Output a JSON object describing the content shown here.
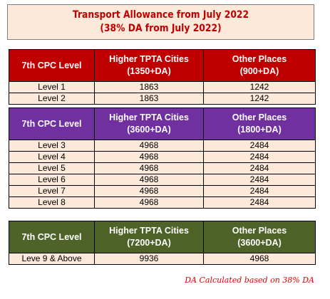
{
  "title": {
    "line1": "Transport Allowance from July 2022",
    "line2": "(38% DA from July 2022)"
  },
  "tables": [
    {
      "header": {
        "col1": "7th CPC Level",
        "col2_line1": "Higher TPTA Cities",
        "col2_line2": "(1350+DA)",
        "col3_line1": "Other Places",
        "col3_line2": "(900+DA)"
      },
      "header_color": "#c00000",
      "rows": [
        {
          "level": "Level 1",
          "higher": "1863",
          "other": "1242"
        },
        {
          "level": "Level 2",
          "higher": "1863",
          "other": "1242"
        }
      ]
    },
    {
      "header": {
        "col1": "7th CPC Level",
        "col2_line1": "Higher TPTA Cities",
        "col2_line2": "(3600+DA)",
        "col3_line1": "Other Places",
        "col3_line2": "(1800+DA)"
      },
      "header_color": "#7030a0",
      "rows": [
        {
          "level": "Level 3",
          "higher": "4968",
          "other": "2484"
        },
        {
          "level": "Level 4",
          "higher": "4968",
          "other": "2484"
        },
        {
          "level": "Level 5",
          "higher": "4968",
          "other": "2484"
        },
        {
          "level": "Level 6",
          "higher": "4968",
          "other": "2484"
        },
        {
          "level": "Level 7",
          "higher": "4968",
          "other": "2484"
        },
        {
          "level": "Level 8",
          "higher": "4968",
          "other": "2484"
        }
      ]
    },
    {
      "header": {
        "col1": "7th CPC Level",
        "col2_line1": "Higher TPTA Cities",
        "col2_line2": "(7200+DA)",
        "col3_line1": "Other Places",
        "col3_line2": "(3600+DA)"
      },
      "header_color": "#4f6228",
      "rows": [
        {
          "level": "Leve 9 & Above",
          "higher": "9936",
          "other": "4968"
        }
      ]
    }
  ],
  "footnote": "DA Calculated based on 38% DA",
  "colors": {
    "title_text": "#c00000",
    "cell_background": "#fde9d9",
    "footnote_text": "#e00000"
  }
}
